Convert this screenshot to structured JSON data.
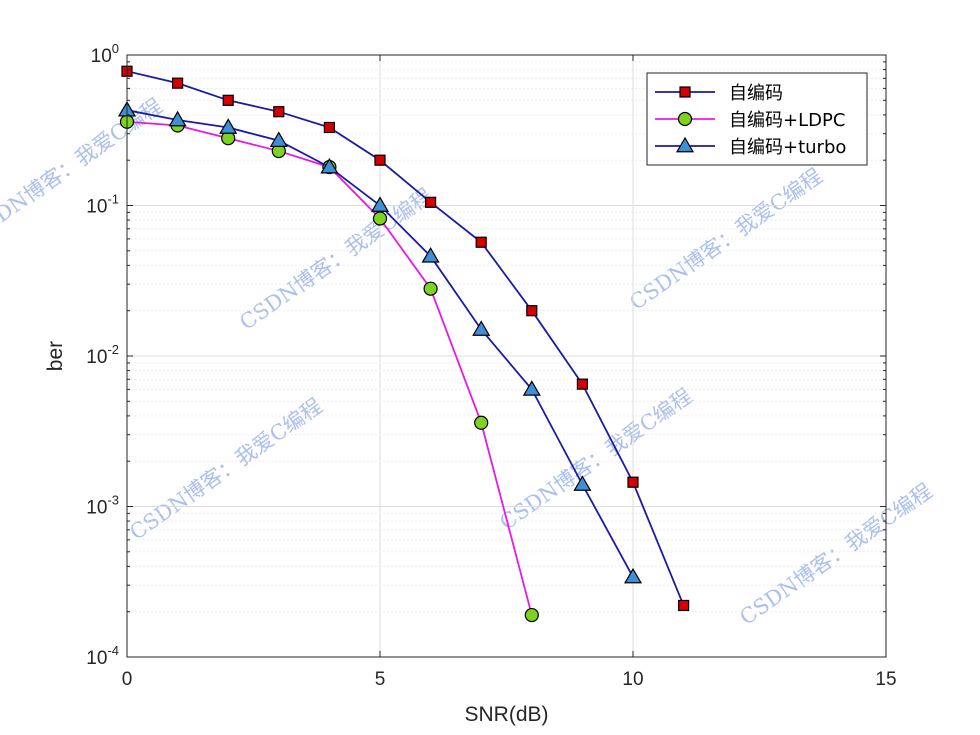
{
  "chart_data": {
    "type": "line",
    "xlabel": "SNR(dB)",
    "ylabel": "ber",
    "xlim": [
      0,
      15
    ],
    "ylim": [
      0.0001,
      1
    ],
    "yscale": "log",
    "x_ticks": [
      0,
      5,
      10,
      15
    ],
    "y_ticks": [
      {
        "base": "10",
        "exp": "0",
        "value": 1
      },
      {
        "base": "10",
        "exp": "-1",
        "value": 0.1
      },
      {
        "base": "10",
        "exp": "-2",
        "value": 0.01
      },
      {
        "base": "10",
        "exp": "-3",
        "value": 0.001
      },
      {
        "base": "10",
        "exp": "-4",
        "value": 0.0001
      }
    ],
    "grid": true,
    "legend_position": "top-right",
    "series": [
      {
        "name": "自编码",
        "color": "#1a1aa6",
        "marker": "square",
        "marker_color": "#d40000",
        "x": [
          0,
          1,
          2,
          3,
          4,
          5,
          6,
          7,
          8,
          9,
          10,
          11
        ],
        "y": [
          0.78,
          0.65,
          0.5,
          0.42,
          0.33,
          0.2,
          0.105,
          0.057,
          0.02,
          0.0065,
          0.00145,
          0.00022
        ]
      },
      {
        "name": "自编码+LDPC",
        "color": "#e619e6",
        "marker": "circle",
        "marker_color": "#7ed321",
        "x": [
          0,
          1,
          2,
          3,
          4,
          5,
          6,
          7,
          8
        ],
        "y": [
          0.36,
          0.34,
          0.28,
          0.23,
          0.18,
          0.082,
          0.028,
          0.0036,
          0.00019
        ]
      },
      {
        "name": "自编码+turbo",
        "color": "#1a1aa6",
        "marker": "triangle",
        "marker_color": "#3d8fd6",
        "x": [
          0,
          1,
          2,
          3,
          4,
          5,
          6,
          7,
          8,
          9,
          10
        ],
        "y": [
          0.43,
          0.37,
          0.33,
          0.27,
          0.18,
          0.1,
          0.046,
          0.015,
          0.006,
          0.0014,
          0.00034
        ]
      }
    ]
  },
  "watermark_text": "CSDN博客：我爱C编程"
}
